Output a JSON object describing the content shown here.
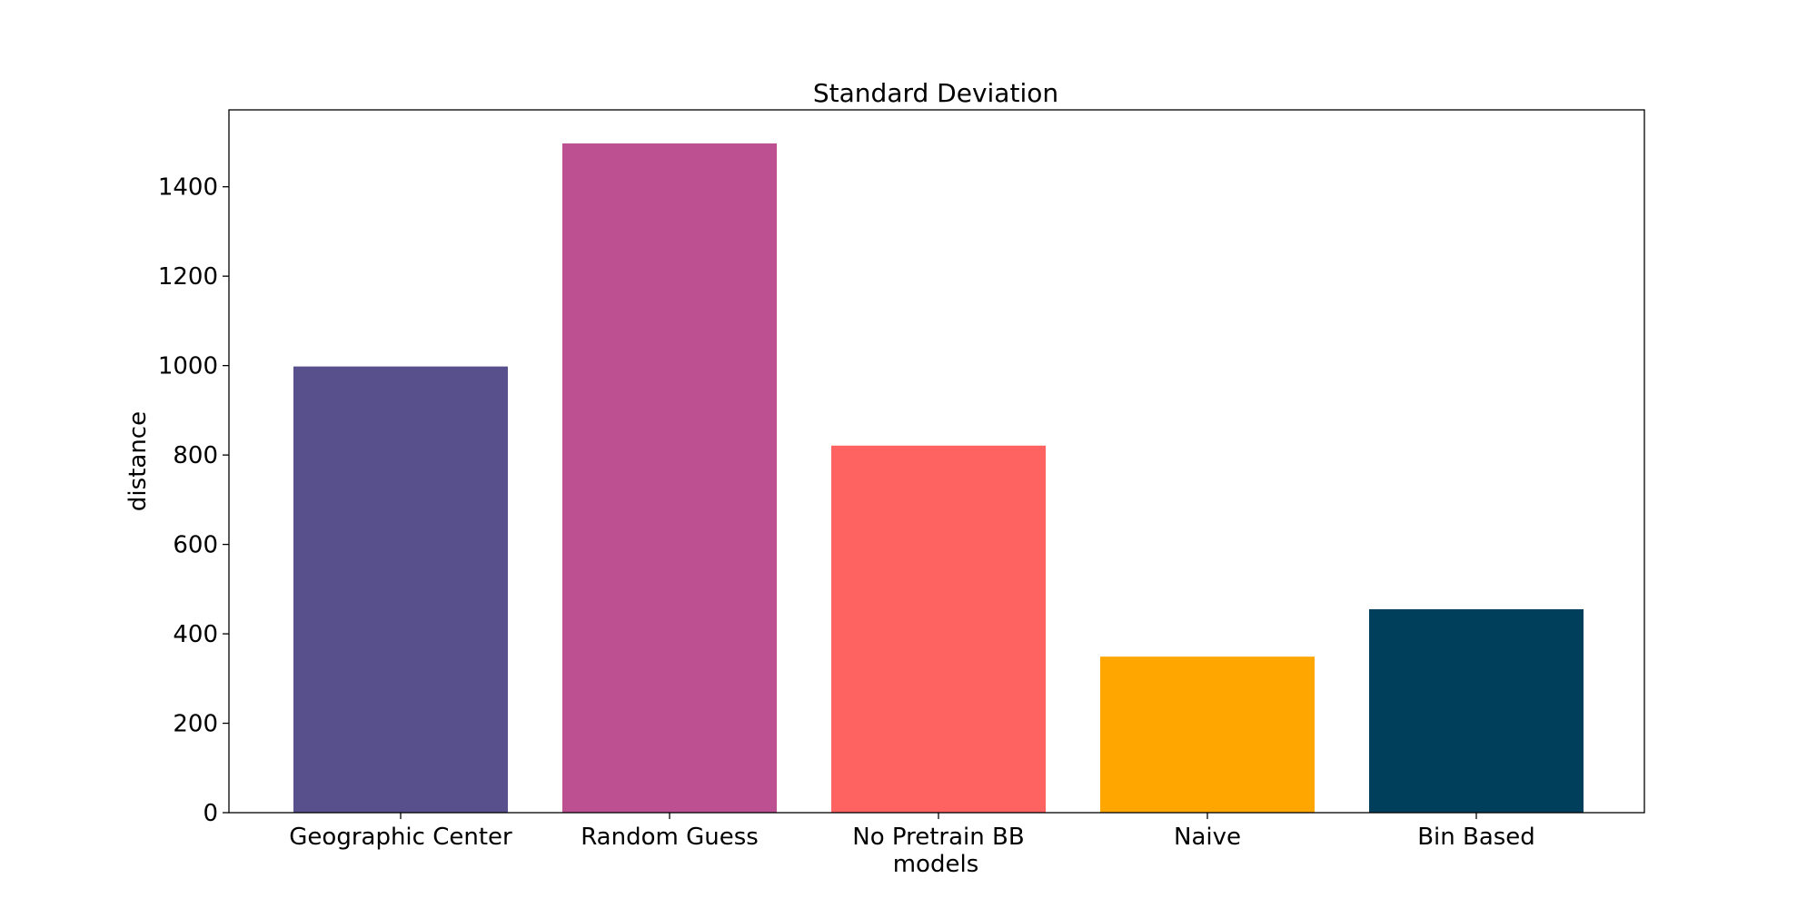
{
  "chart_data": {
    "type": "bar",
    "title": "Standard Deviation",
    "xlabel": "models",
    "ylabel": "distance",
    "categories": [
      "Geographic Center",
      "Random Guess",
      "No Pretrain BB",
      "Naive",
      "Bin Based"
    ],
    "values": [
      998,
      1497,
      821,
      349,
      455
    ],
    "colors": [
      "#58508d",
      "#bc5090",
      "#ff6361",
      "#ffa600",
      "#003f5c"
    ],
    "yticks": [
      0,
      200,
      400,
      600,
      800,
      1000,
      1200,
      1400
    ],
    "ytick_labels": [
      "0",
      "200",
      "400",
      "600",
      "800",
      "1000",
      "1200",
      "1400"
    ],
    "ylim": [
      0,
      1572
    ],
    "grid": false,
    "legend": "none"
  }
}
